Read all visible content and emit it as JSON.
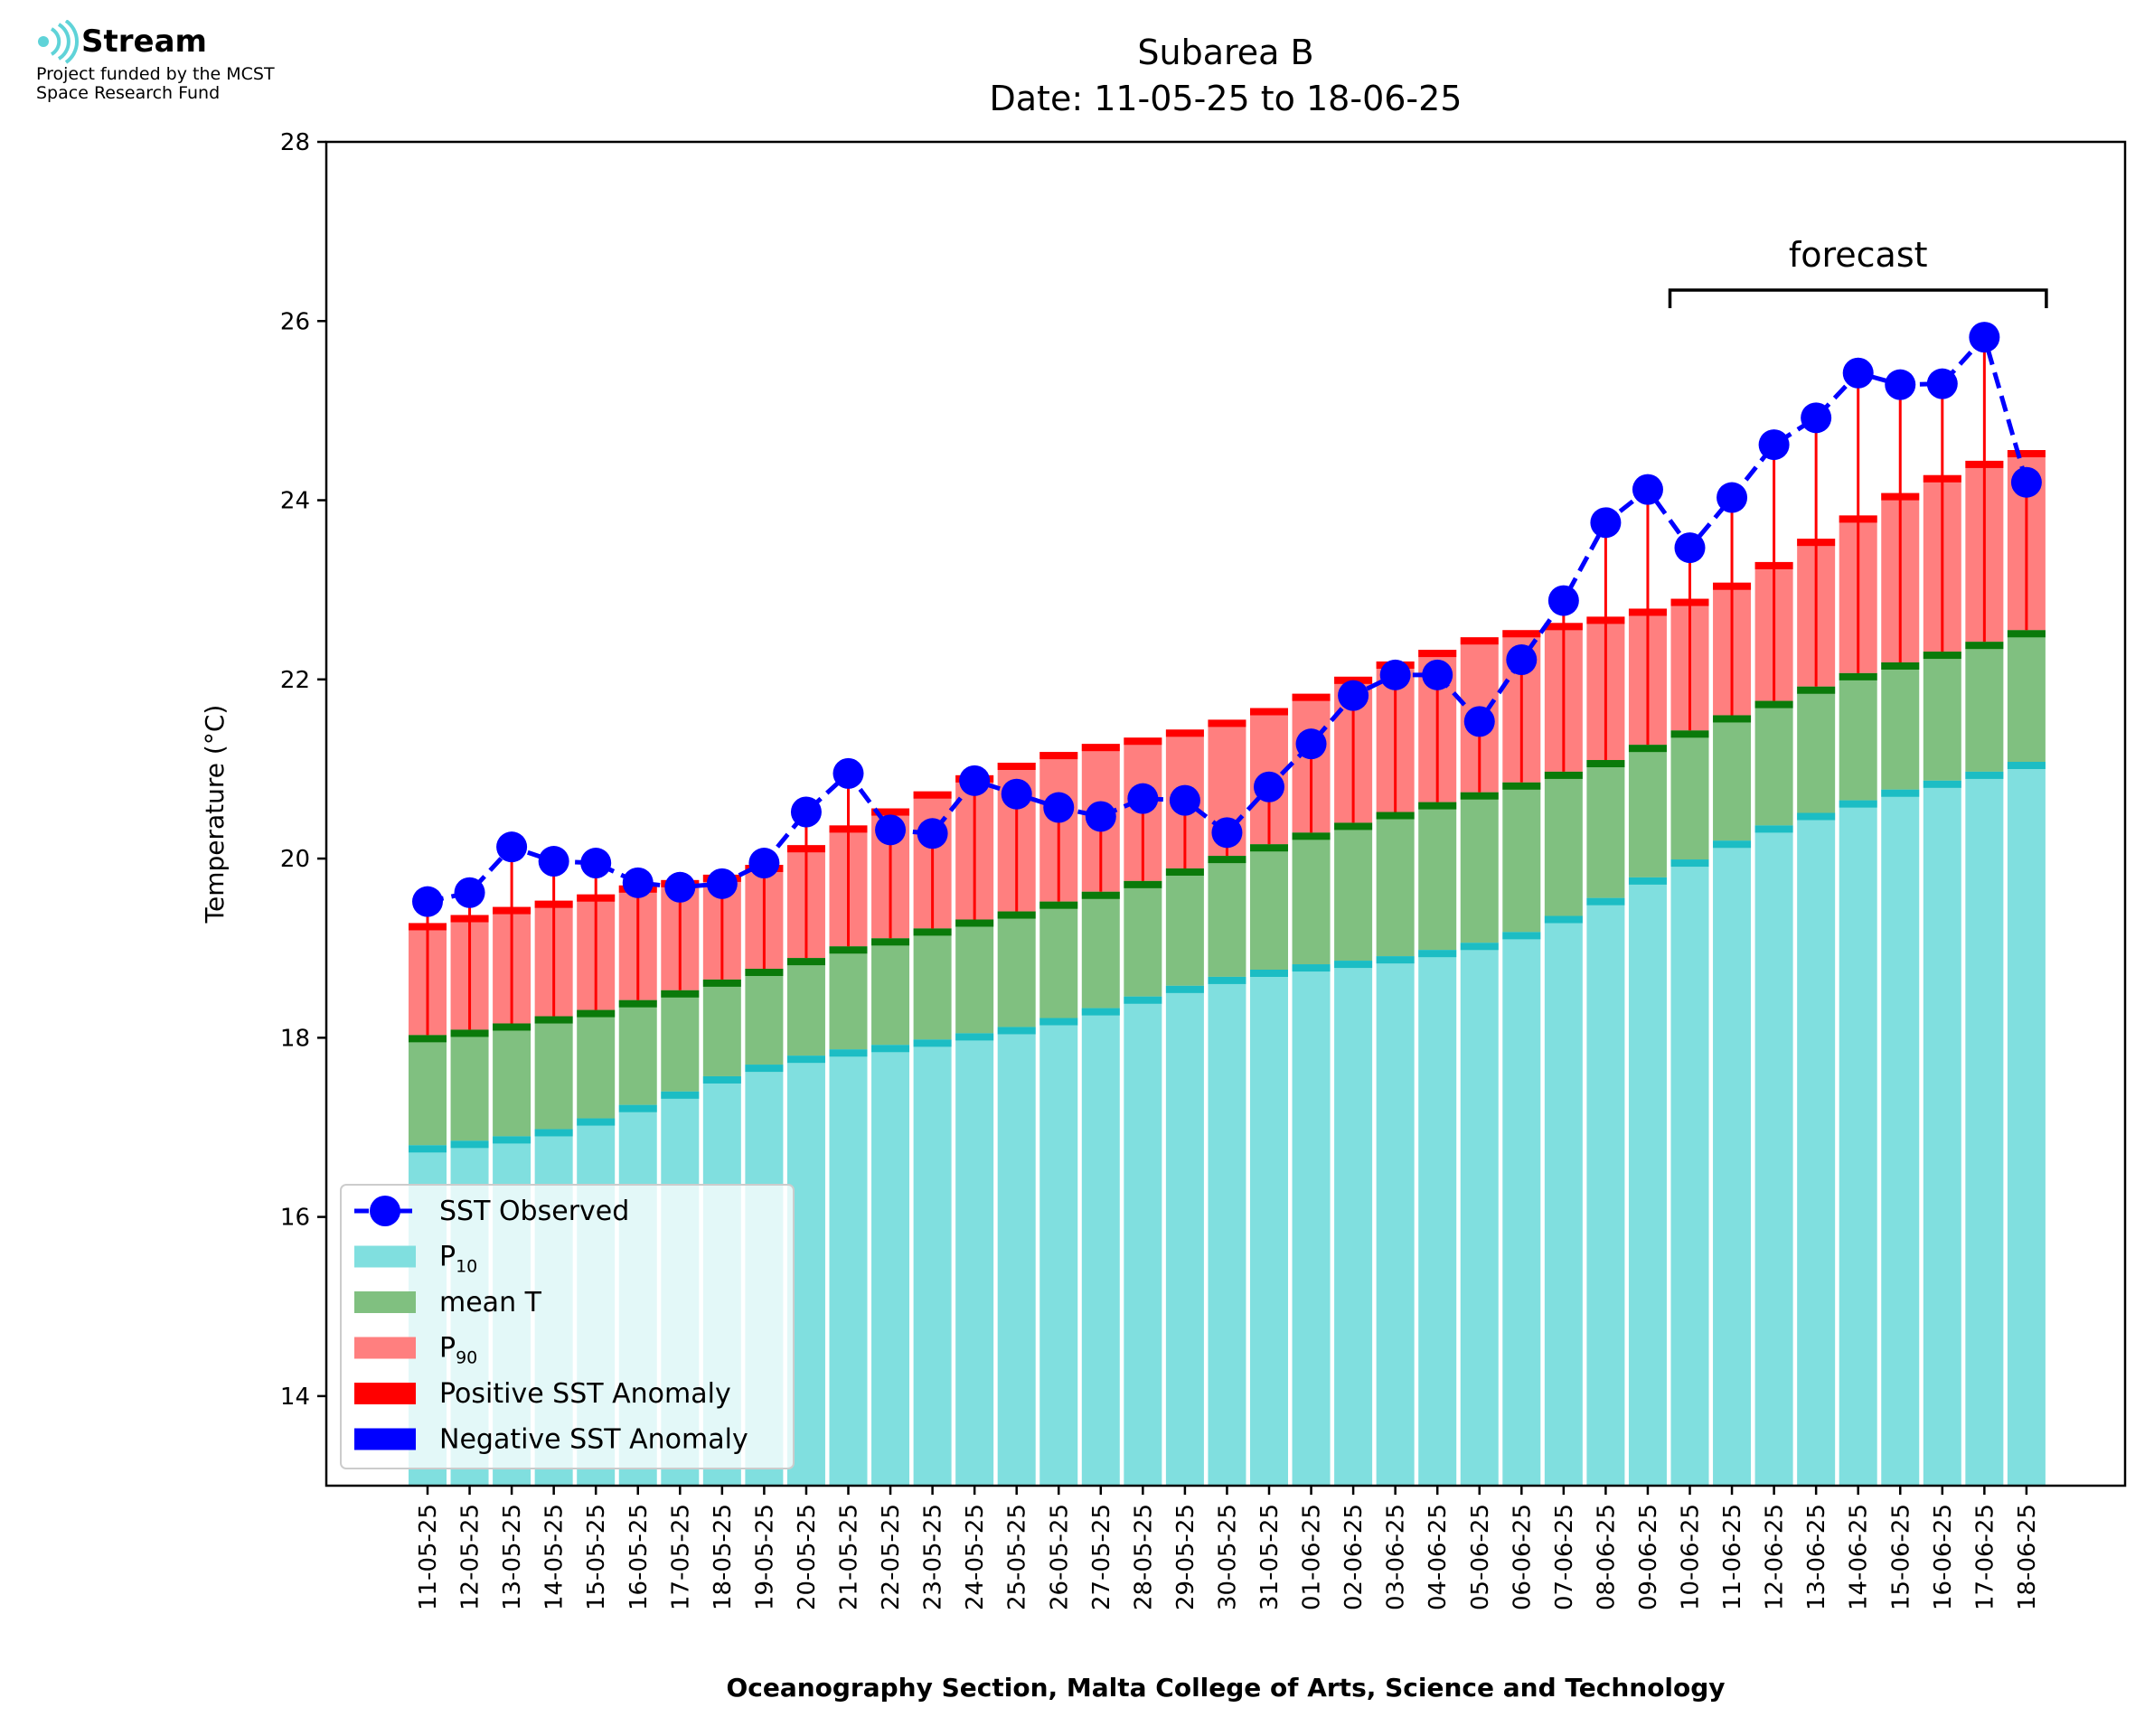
{
  "branding": {
    "name": "Stream",
    "sub_line1": "Project funded by the MCST",
    "sub_line2": "Space Research Fund"
  },
  "chart_data": {
    "type": "bar",
    "title": "Subarea B",
    "subtitle": "Date: 11-05-25 to 18-06-25",
    "xlabel": "Oceanography Section, Malta College of Arts, Science and Technology",
    "ylabel": "Temperature (°C)",
    "ylim": [
      13,
      28
    ],
    "yticks": [
      14,
      16,
      18,
      20,
      22,
      24,
      26,
      28
    ],
    "grid": false,
    "legend_position": "lower-left",
    "forecast_label": "forecast",
    "forecast_range": [
      "10-06-25",
      "18-06-25"
    ],
    "colors": {
      "p10": "#80dfdf",
      "p10_cap": "#1cbdc4",
      "mean": "#80c080",
      "mean_cap": "#0a7a0a",
      "p90": "#ff7f7f",
      "p90_cap": "#ff0000",
      "positive_anomaly": "#ff0000",
      "negative_anomaly": "#0000ff",
      "observed": "#0000ff"
    },
    "legend": [
      {
        "key": "observed",
        "label": "SST Observed",
        "sub": ""
      },
      {
        "key": "p10",
        "label": "P",
        "sub": "10"
      },
      {
        "key": "mean",
        "label": "mean T",
        "sub": ""
      },
      {
        "key": "p90",
        "label": "P",
        "sub": "90"
      },
      {
        "key": "positive_anomaly",
        "label": "Positive SST Anomaly",
        "sub": ""
      },
      {
        "key": "negative_anomaly",
        "label": "Negative SST Anomaly",
        "sub": ""
      }
    ],
    "categories": [
      "11-05-25",
      "12-05-25",
      "13-05-25",
      "14-05-25",
      "15-05-25",
      "16-05-25",
      "17-05-25",
      "18-05-25",
      "19-05-25",
      "20-05-25",
      "21-05-25",
      "22-05-25",
      "23-05-25",
      "24-05-25",
      "25-05-25",
      "26-05-25",
      "27-05-25",
      "28-05-25",
      "29-05-25",
      "30-05-25",
      "31-05-25",
      "01-06-25",
      "02-06-25",
      "03-06-25",
      "04-06-25",
      "05-06-25",
      "06-06-25",
      "07-06-25",
      "08-06-25",
      "09-06-25",
      "10-06-25",
      "11-06-25",
      "12-06-25",
      "13-06-25",
      "14-06-25",
      "15-06-25",
      "16-06-25",
      "17-06-25",
      "18-06-25"
    ],
    "series": [
      {
        "name": "P10",
        "values": [
          16.8,
          16.85,
          16.9,
          16.98,
          17.1,
          17.25,
          17.4,
          17.57,
          17.7,
          17.8,
          17.87,
          17.92,
          17.98,
          18.05,
          18.12,
          18.22,
          18.33,
          18.46,
          18.58,
          18.68,
          18.76,
          18.82,
          18.86,
          18.91,
          18.98,
          19.06,
          19.18,
          19.36,
          19.56,
          19.79,
          19.99,
          20.2,
          20.37,
          20.51,
          20.65,
          20.77,
          20.87,
          20.97,
          21.08
        ]
      },
      {
        "name": "mean T",
        "values": [
          18.03,
          18.09,
          18.16,
          18.24,
          18.31,
          18.42,
          18.53,
          18.65,
          18.77,
          18.89,
          19.02,
          19.11,
          19.22,
          19.32,
          19.41,
          19.52,
          19.63,
          19.75,
          19.89,
          20.03,
          20.16,
          20.29,
          20.4,
          20.52,
          20.63,
          20.74,
          20.85,
          20.97,
          21.1,
          21.27,
          21.43,
          21.6,
          21.76,
          21.92,
          22.07,
          22.19,
          22.31,
          22.42,
          22.55
        ]
      },
      {
        "name": "P90",
        "values": [
          19.28,
          19.37,
          19.46,
          19.53,
          19.6,
          19.7,
          19.76,
          19.82,
          19.93,
          20.15,
          20.37,
          20.56,
          20.75,
          20.93,
          21.07,
          21.19,
          21.28,
          21.35,
          21.44,
          21.55,
          21.68,
          21.84,
          22.03,
          22.2,
          22.33,
          22.47,
          22.55,
          22.63,
          22.7,
          22.79,
          22.9,
          23.08,
          23.31,
          23.57,
          23.83,
          24.08,
          24.28,
          24.44,
          24.56
        ]
      },
      {
        "name": "SST Observed",
        "values": [
          19.52,
          19.62,
          20.13,
          19.97,
          19.95,
          19.73,
          19.68,
          19.72,
          19.95,
          20.52,
          20.95,
          20.32,
          20.28,
          20.87,
          20.72,
          20.57,
          20.47,
          20.67,
          20.65,
          20.29,
          20.8,
          21.28,
          21.82,
          22.05,
          22.05,
          21.53,
          22.22,
          22.88,
          23.75,
          24.12,
          23.47,
          24.03,
          24.62,
          24.92,
          25.42,
          25.29,
          25.3,
          25.82,
          24.2
        ]
      }
    ]
  }
}
